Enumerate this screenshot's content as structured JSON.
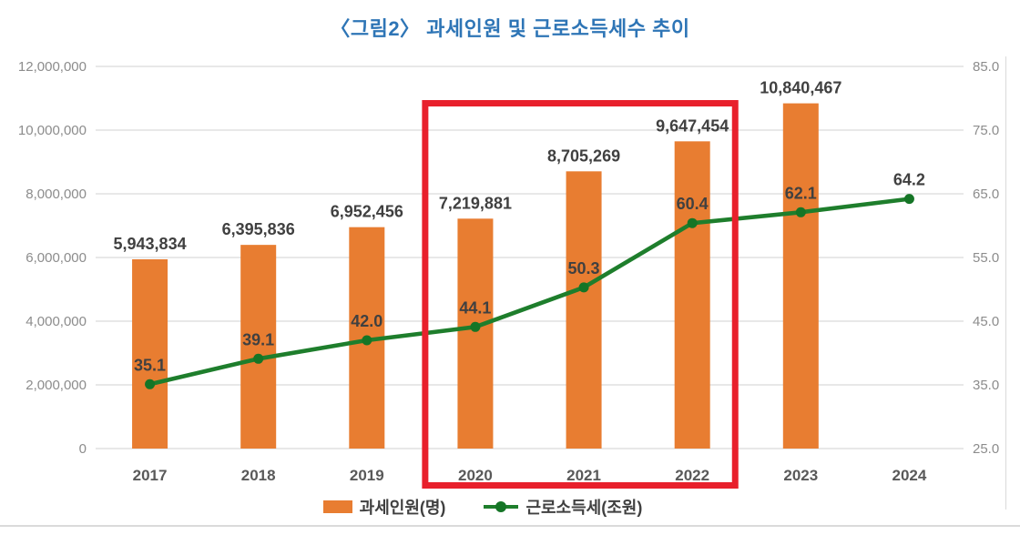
{
  "title": "〈그림2〉 과세인원  및  근로소득세수  추이",
  "colors": {
    "bar": "#E87D31",
    "line": "#1E7E2C",
    "marker": "#157526",
    "title": "#2E75B6",
    "axis_text": "#8C8C8C",
    "category_text": "#595959",
    "data_label": "#404040",
    "gridline": "#D9D9D9",
    "highlight": "#E8202C",
    "border_rule": "#DADADA"
  },
  "chart_data": {
    "type": "combo",
    "title": "〈그림2〉 과세인원 및 근로소득세수 추이",
    "categories": [
      "2017",
      "2018",
      "2019",
      "2020",
      "2021",
      "2022",
      "2023",
      "2024"
    ],
    "series": [
      {
        "name": "과세인원(명)",
        "type": "bar",
        "axis": "left",
        "values": [
          5943834,
          6395836,
          6952456,
          7219881,
          8705269,
          9647454,
          10840467,
          null
        ],
        "labels": [
          "5,943,834",
          "6,395,836",
          "6,952,456",
          "7,219,881",
          "8,705,269",
          "9,647,454",
          "10,840,467",
          ""
        ]
      },
      {
        "name": "근로소득세(조원)",
        "type": "line",
        "axis": "right",
        "values": [
          35.1,
          39.1,
          42.0,
          44.1,
          50.3,
          60.4,
          62.1,
          64.2
        ],
        "labels": [
          "35.1",
          "39.1",
          "42.0",
          "44.1",
          "50.3",
          "60.4",
          "62.1",
          "64.2"
        ]
      }
    ],
    "left_axis": {
      "min": 0,
      "max": 12000000,
      "ticks": [
        "0",
        "2,000,000",
        "4,000,000",
        "6,000,000",
        "8,000,000",
        "10,000,000",
        "12,000,000"
      ]
    },
    "right_axis": {
      "min": 25,
      "max": 85,
      "ticks": [
        "25.0",
        "35.0",
        "45.0",
        "55.0",
        "65.0",
        "75.0",
        "85.0"
      ]
    },
    "grid": true,
    "legend_position": "bottom",
    "highlight": {
      "from": "2020",
      "to": "2022"
    }
  },
  "legend": {
    "bar_label": "과세인원(명)",
    "line_label": "근로소득세(조원)"
  }
}
